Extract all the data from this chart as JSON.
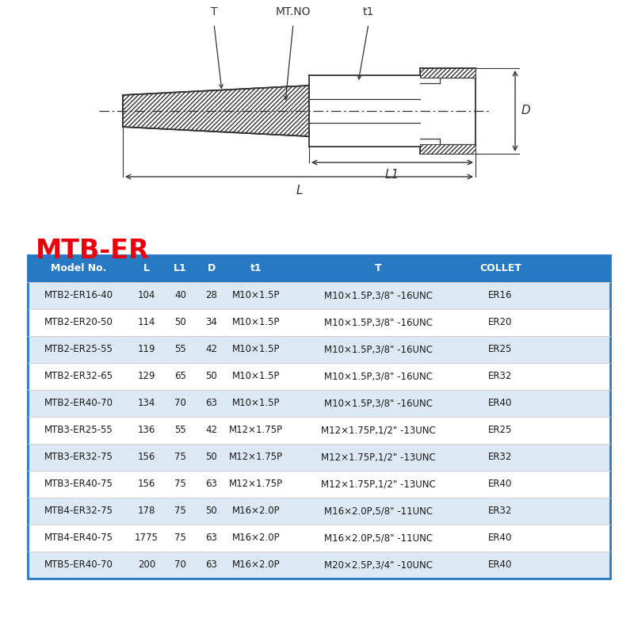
{
  "title": "MTB-ER",
  "title_color": "#e8000d",
  "bg_color": "#ffffff",
  "header_bg": "#2779c4",
  "header_text_color": "#ffffff",
  "odd_row_bg": "#dce9f5",
  "even_row_bg": "#ffffff",
  "table_border_color": "#2779c4",
  "line_color": "#333333",
  "columns": [
    "Model No.",
    "L",
    "L1",
    "D",
    "t1",
    "T",
    "COLLET"
  ],
  "rows": [
    [
      "MTB2-ER16-40",
      "104",
      "40",
      "28",
      "M10×1.5P",
      "M10×1.5P,3/8\" -16UNC",
      "ER16"
    ],
    [
      "MTB2-ER20-50",
      "114",
      "50",
      "34",
      "M10×1.5P",
      "M10×1.5P,3/8\" -16UNC",
      "ER20"
    ],
    [
      "MTB2-ER25-55",
      "119",
      "55",
      "42",
      "M10×1.5P",
      "M10×1.5P,3/8\" -16UNC",
      "ER25"
    ],
    [
      "MTB2-ER32-65",
      "129",
      "65",
      "50",
      "M10×1.5P",
      "M10×1.5P,3/8\" -16UNC",
      "ER32"
    ],
    [
      "MTB2-ER40-70",
      "134",
      "70",
      "63",
      "M10×1.5P",
      "M10×1.5P,3/8\" -16UNC",
      "ER40"
    ],
    [
      "MTB3-ER25-55",
      "136",
      "55",
      "42",
      "M12×1.75P",
      "M12×1.75P,1/2\" -13UNC",
      "ER25"
    ],
    [
      "MTB3-ER32-75",
      "156",
      "75",
      "50",
      "M12×1.75P",
      "M12×1.75P,1/2\" -13UNC",
      "ER32"
    ],
    [
      "MTB3-ER40-75",
      "156",
      "75",
      "63",
      "M12×1.75P",
      "M12×1.75P,1/2\" -13UNC",
      "ER40"
    ],
    [
      "MTB4-ER32-75",
      "178",
      "75",
      "50",
      "M16×2.0P",
      "M16×2.0P,5/8\" -11UNC",
      "ER32"
    ],
    [
      "MTB4-ER40-75",
      "1775",
      "75",
      "63",
      "M16×2.0P",
      "M16×2.0P,5/8\" -11UNC",
      "ER40"
    ],
    [
      "MTB5-ER40-70",
      "200",
      "70",
      "63",
      "M16×2.0P",
      "M20×2.5P,3/4\" -10UNC",
      "ER40"
    ]
  ]
}
